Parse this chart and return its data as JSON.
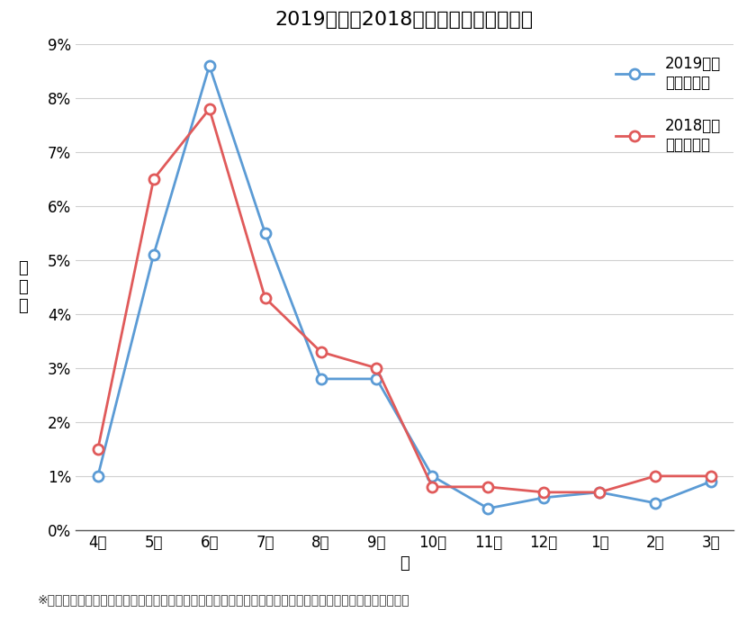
{
  "title": "2019年卒と2018年卒の内定辞退率比較",
  "xlabel": "月",
  "ylabel": "辞\n退\n率",
  "footnote": "※辞退率：各月のエアリーフレッシャーズクラウド利用者数における辞退者（ログイン停止・退会者）の比率",
  "months": [
    "4月",
    "5月",
    "6月",
    "7月",
    "8月",
    "9月",
    "10月",
    "11月",
    "12月",
    "1月",
    "2月",
    "3月"
  ],
  "series_2019": [
    0.01,
    0.051,
    0.086,
    0.055,
    0.028,
    0.028,
    0.01,
    0.004,
    0.006,
    0.007,
    0.005,
    0.009
  ],
  "series_2018": [
    0.015,
    0.065,
    0.078,
    0.043,
    0.033,
    0.03,
    0.008,
    0.008,
    0.007,
    0.007,
    0.01,
    0.01
  ],
  "color_2019": "#5B9BD5",
  "color_2018": "#E05A5A",
  "legend_2019": "2019年卒\n内定辞退率",
  "legend_2018": "2018年卒\n内定辞退率",
  "ylim": [
    0,
    0.09
  ],
  "yticks": [
    0.0,
    0.01,
    0.02,
    0.03,
    0.04,
    0.05,
    0.06,
    0.07,
    0.08,
    0.09
  ],
  "ytick_labels": [
    "0%",
    "1%",
    "2%",
    "3%",
    "4%",
    "5%",
    "6%",
    "7%",
    "8%",
    "9%"
  ],
  "background_color": "#ffffff",
  "title_fontsize": 16,
  "axis_fontsize": 13,
  "tick_fontsize": 12,
  "legend_fontsize": 12,
  "footnote_fontsize": 10,
  "linewidth": 2.0,
  "markersize": 8
}
